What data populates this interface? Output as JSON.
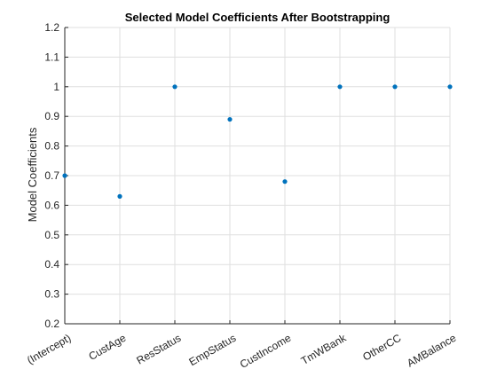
{
  "chart_data": {
    "type": "scatter",
    "title": "Selected Model Coefficients After Bootstrapping",
    "xlabel": "",
    "ylabel": "Model Coefficients",
    "categories": [
      "(Intercept)",
      "CustAge",
      "ResStatus",
      "EmpStatus",
      "CustIncome",
      "TmWBank",
      "OtherCC",
      "AMBalance"
    ],
    "values": [
      0.7,
      0.63,
      1.0,
      0.89,
      0.68,
      1.0,
      1.0,
      1.0
    ],
    "ylim": [
      0.2,
      1.2
    ],
    "yticks": [
      "0.2",
      "0.3",
      "0.4",
      "0.5",
      "0.6",
      "0.7",
      "0.8",
      "0.9",
      "1",
      "1.1",
      "1.2"
    ],
    "grid": true,
    "marker_color": "#0072BD",
    "axis_color": "#262626",
    "grid_color": "#dfdfdf"
  }
}
